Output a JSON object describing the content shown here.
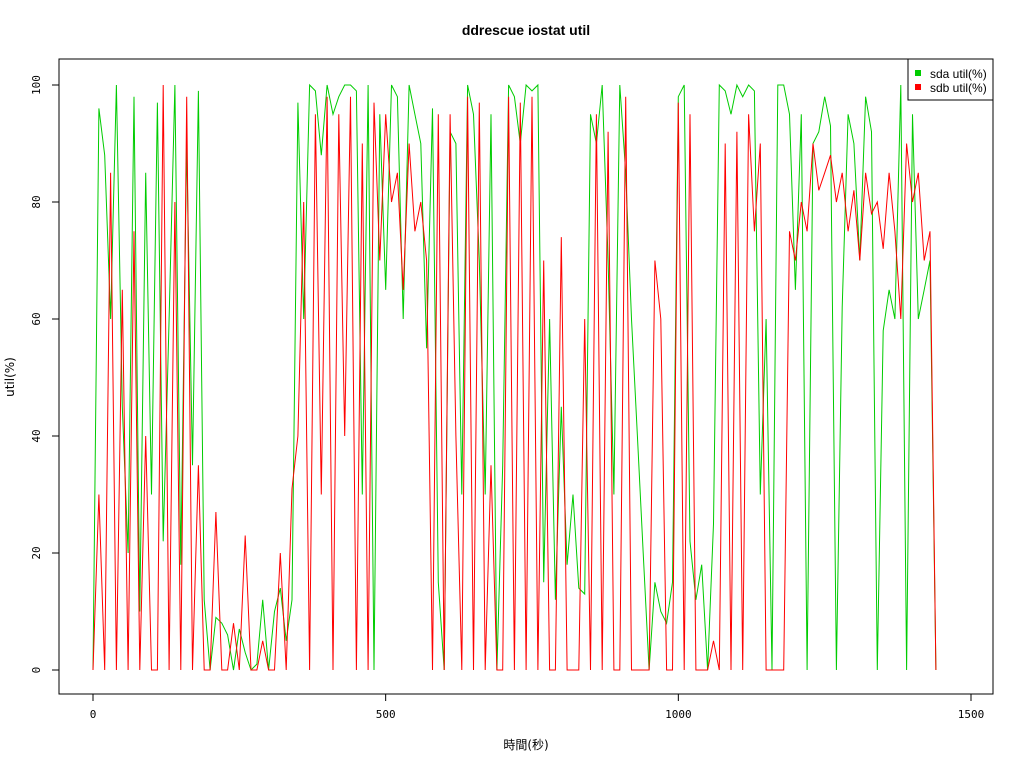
{
  "chart_data": {
    "type": "line",
    "title": "ddrescue iostat util",
    "xlabel": "時間(秒)",
    "ylabel": "util(%)",
    "xlim": [
      0,
      1500
    ],
    "ylim": [
      0,
      100
    ],
    "x_ticks": [
      "0",
      "500",
      "1000",
      "1500"
    ],
    "y_ticks": [
      "0",
      "20",
      "40",
      "60",
      "80",
      "100"
    ],
    "grid": false,
    "legend_position": "top-right",
    "series": [
      {
        "name": "sda util(%)",
        "color": "#00cc00",
        "x_start": 0,
        "x_step": 10,
        "values": [
          0,
          96,
          88,
          60,
          100,
          45,
          20,
          98,
          10,
          85,
          30,
          97,
          22,
          60,
          100,
          18,
          90,
          35,
          99,
          12,
          0,
          9,
          8,
          6,
          0,
          7,
          3,
          0,
          1,
          12,
          0,
          10,
          14,
          5,
          12,
          97,
          60,
          100,
          99,
          88,
          100,
          95,
          98,
          100,
          100,
          99,
          30,
          100,
          0,
          95,
          65,
          100,
          98,
          60,
          100,
          95,
          90,
          55,
          96,
          15,
          0,
          92,
          90,
          30,
          100,
          95,
          70,
          30,
          95,
          0,
          35,
          100,
          98,
          90,
          100,
          99,
          100,
          15,
          60,
          12,
          45,
          18,
          30,
          14,
          13,
          95,
          90,
          100,
          70,
          30,
          100,
          85,
          60,
          40,
          20,
          0,
          15,
          10,
          8,
          15,
          98,
          100,
          22,
          12,
          18,
          0,
          25,
          100,
          99,
          95,
          100,
          98,
          100,
          99,
          30,
          60,
          0,
          100,
          100,
          95,
          65,
          95,
          0,
          90,
          92,
          98,
          93,
          0,
          62,
          95,
          90,
          70,
          98,
          92,
          0,
          58,
          65,
          60,
          100,
          0,
          95,
          60,
          65,
          70,
          0
        ]
      },
      {
        "name": "sdb util(%)",
        "color": "#ff0000",
        "x_start": 0,
        "x_step": 10,
        "values": [
          0,
          30,
          0,
          85,
          0,
          65,
          0,
          75,
          0,
          40,
          0,
          0,
          100,
          0,
          80,
          0,
          98,
          0,
          35,
          0,
          0,
          27,
          0,
          0,
          8,
          0,
          23,
          0,
          0,
          5,
          0,
          0,
          20,
          0,
          31,
          40,
          80,
          0,
          95,
          30,
          98,
          0,
          95,
          40,
          98,
          0,
          90,
          0,
          97,
          70,
          95,
          80,
          85,
          65,
          90,
          75,
          80,
          70,
          0,
          95,
          0,
          95,
          40,
          0,
          98,
          0,
          97,
          0,
          35,
          0,
          0,
          98,
          0,
          97,
          0,
          98,
          0,
          70,
          0,
          0,
          74,
          0,
          0,
          0,
          60,
          0,
          95,
          0,
          92,
          0,
          0,
          98,
          0,
          0,
          0,
          0,
          70,
          60,
          0,
          0,
          97,
          0,
          95,
          0,
          0,
          0,
          5,
          0,
          90,
          0,
          92,
          0,
          95,
          75,
          90,
          0,
          0,
          0,
          0,
          75,
          70,
          80,
          75,
          90,
          82,
          85,
          88,
          80,
          85,
          75,
          82,
          70,
          85,
          78,
          80,
          72,
          85,
          75,
          60,
          90,
          80,
          85,
          70,
          75,
          0
        ]
      }
    ]
  }
}
